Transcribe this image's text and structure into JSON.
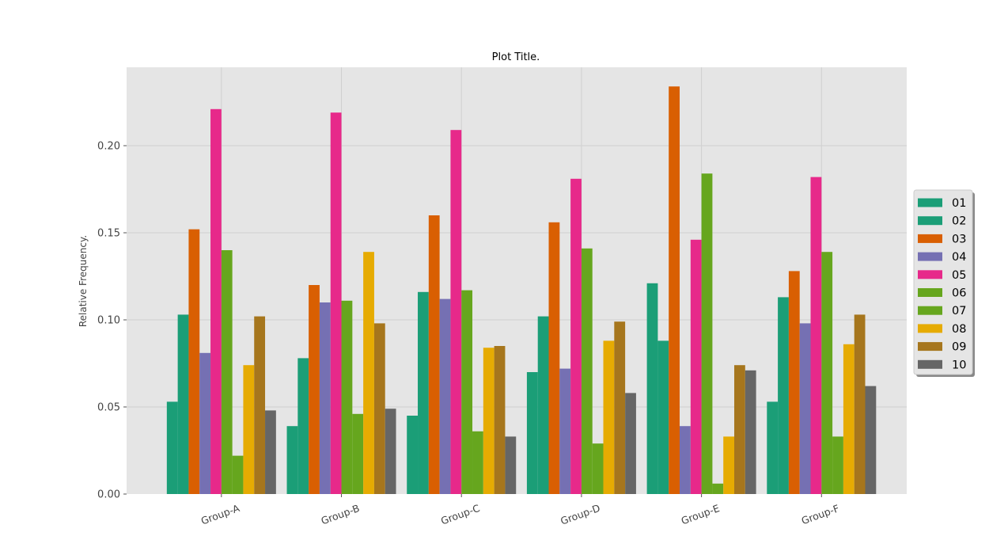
{
  "chart_data": {
    "type": "bar",
    "title": "Plot Title.",
    "xlabel": "",
    "ylabel": "Relative Frequency.",
    "categories": [
      "Group-A",
      "Group-B",
      "Group-C",
      "Group-D",
      "Group-E",
      "Group-F"
    ],
    "ylim": [
      0,
      0.245
    ],
    "yticks": [
      "0.00",
      "0.05",
      "0.10",
      "0.15",
      "0.20"
    ],
    "grid": true,
    "legend_position": "right",
    "background": "#e5e5e5",
    "series": [
      {
        "name": "01",
        "color": "#1b9e77",
        "values": [
          0.053,
          0.039,
          0.045,
          0.07,
          0.121,
          0.053
        ]
      },
      {
        "name": "02",
        "color": "#1b9e77",
        "values": [
          0.103,
          0.078,
          0.116,
          0.102,
          0.088,
          0.113
        ]
      },
      {
        "name": "03",
        "color": "#d95f02",
        "values": [
          0.152,
          0.12,
          0.16,
          0.156,
          0.234,
          0.128
        ]
      },
      {
        "name": "04",
        "color": "#7570b3",
        "values": [
          0.081,
          0.11,
          0.112,
          0.072,
          0.039,
          0.098
        ]
      },
      {
        "name": "05",
        "color": "#e7298a",
        "values": [
          0.221,
          0.219,
          0.209,
          0.181,
          0.146,
          0.182
        ]
      },
      {
        "name": "06",
        "color": "#66a61e",
        "values": [
          0.14,
          0.111,
          0.117,
          0.141,
          0.184,
          0.139
        ]
      },
      {
        "name": "07",
        "color": "#66a61e",
        "values": [
          0.022,
          0.046,
          0.036,
          0.029,
          0.006,
          0.033
        ]
      },
      {
        "name": "08",
        "color": "#e6ab02",
        "values": [
          0.074,
          0.139,
          0.084,
          0.088,
          0.033,
          0.086
        ]
      },
      {
        "name": "09",
        "color": "#a6761d",
        "values": [
          0.102,
          0.098,
          0.085,
          0.099,
          0.074,
          0.103
        ]
      },
      {
        "name": "10",
        "color": "#666666",
        "values": [
          0.048,
          0.049,
          0.033,
          0.058,
          0.071,
          0.062
        ]
      }
    ]
  }
}
